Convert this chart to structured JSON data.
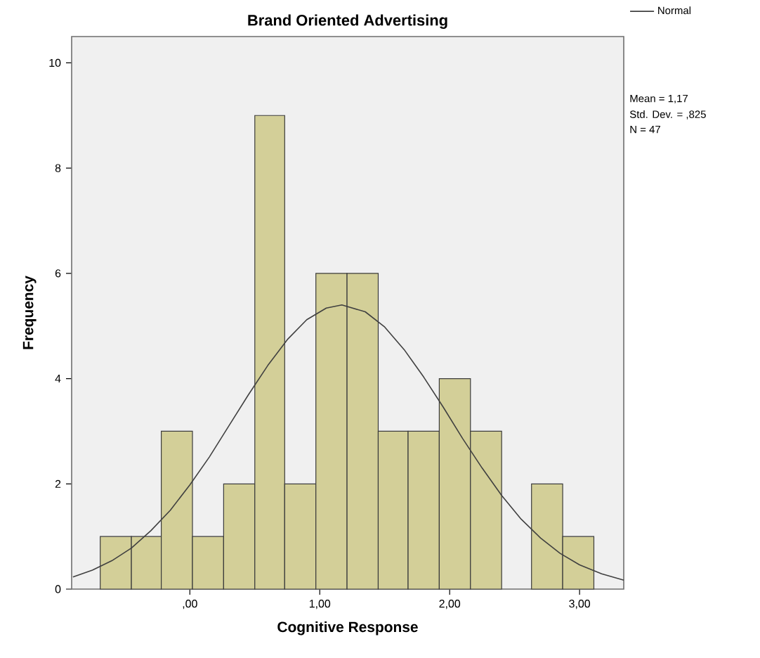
{
  "chart_data": {
    "type": "histogram",
    "title": "Brand Oriented Advertising",
    "xlabel": "Cognitive Response",
    "ylabel": "Frequency",
    "bins": [
      -0.69,
      -0.45,
      -0.22,
      0.02,
      0.26,
      0.5,
      0.73,
      0.97,
      1.21,
      1.45,
      1.68,
      1.92,
      2.16,
      2.4,
      2.63,
      2.87,
      3.11
    ],
    "values": [
      1,
      1,
      3,
      1,
      2,
      9,
      2,
      6,
      6,
      3,
      3,
      4,
      3,
      0,
      2,
      1
    ],
    "color": "#d3cf98",
    "series": [
      {
        "name": "Normal",
        "type": "line",
        "color": "#404040",
        "x": [
          -0.9,
          -0.75,
          -0.6,
          -0.45,
          -0.3,
          -0.15,
          0,
          0.15,
          0.3,
          0.45,
          0.6,
          0.75,
          0.9,
          1.05,
          1.17,
          1.35,
          1.5,
          1.65,
          1.8,
          1.95,
          2.1,
          2.25,
          2.4,
          2.55,
          2.7,
          2.85,
          3.0,
          3.17,
          3.34
        ],
        "values": [
          0.23,
          0.36,
          0.54,
          0.78,
          1.11,
          1.5,
          1.98,
          2.51,
          3.1,
          3.69,
          4.25,
          4.74,
          5.12,
          5.34,
          5.4,
          5.27,
          4.98,
          4.55,
          4.03,
          3.46,
          2.86,
          2.3,
          1.78,
          1.33,
          0.97,
          0.68,
          0.46,
          0.29,
          0.17
        ]
      }
    ],
    "xlim": [
      -0.91,
      3.34
    ],
    "ylim": [
      0,
      10.5
    ],
    "xticks": [
      {
        "value": 0,
        "label": ",00"
      },
      {
        "value": 1,
        "label": "1,00"
      },
      {
        "value": 2,
        "label": "2,00"
      },
      {
        "value": 3,
        "label": "3,00"
      }
    ],
    "yticks": [
      0,
      2,
      4,
      6,
      8,
      10
    ],
    "legend": "top right",
    "grid": false,
    "annotations": [
      "Mean = 1,17",
      "Std. Dev. = ,825",
      "N = 47"
    ]
  }
}
